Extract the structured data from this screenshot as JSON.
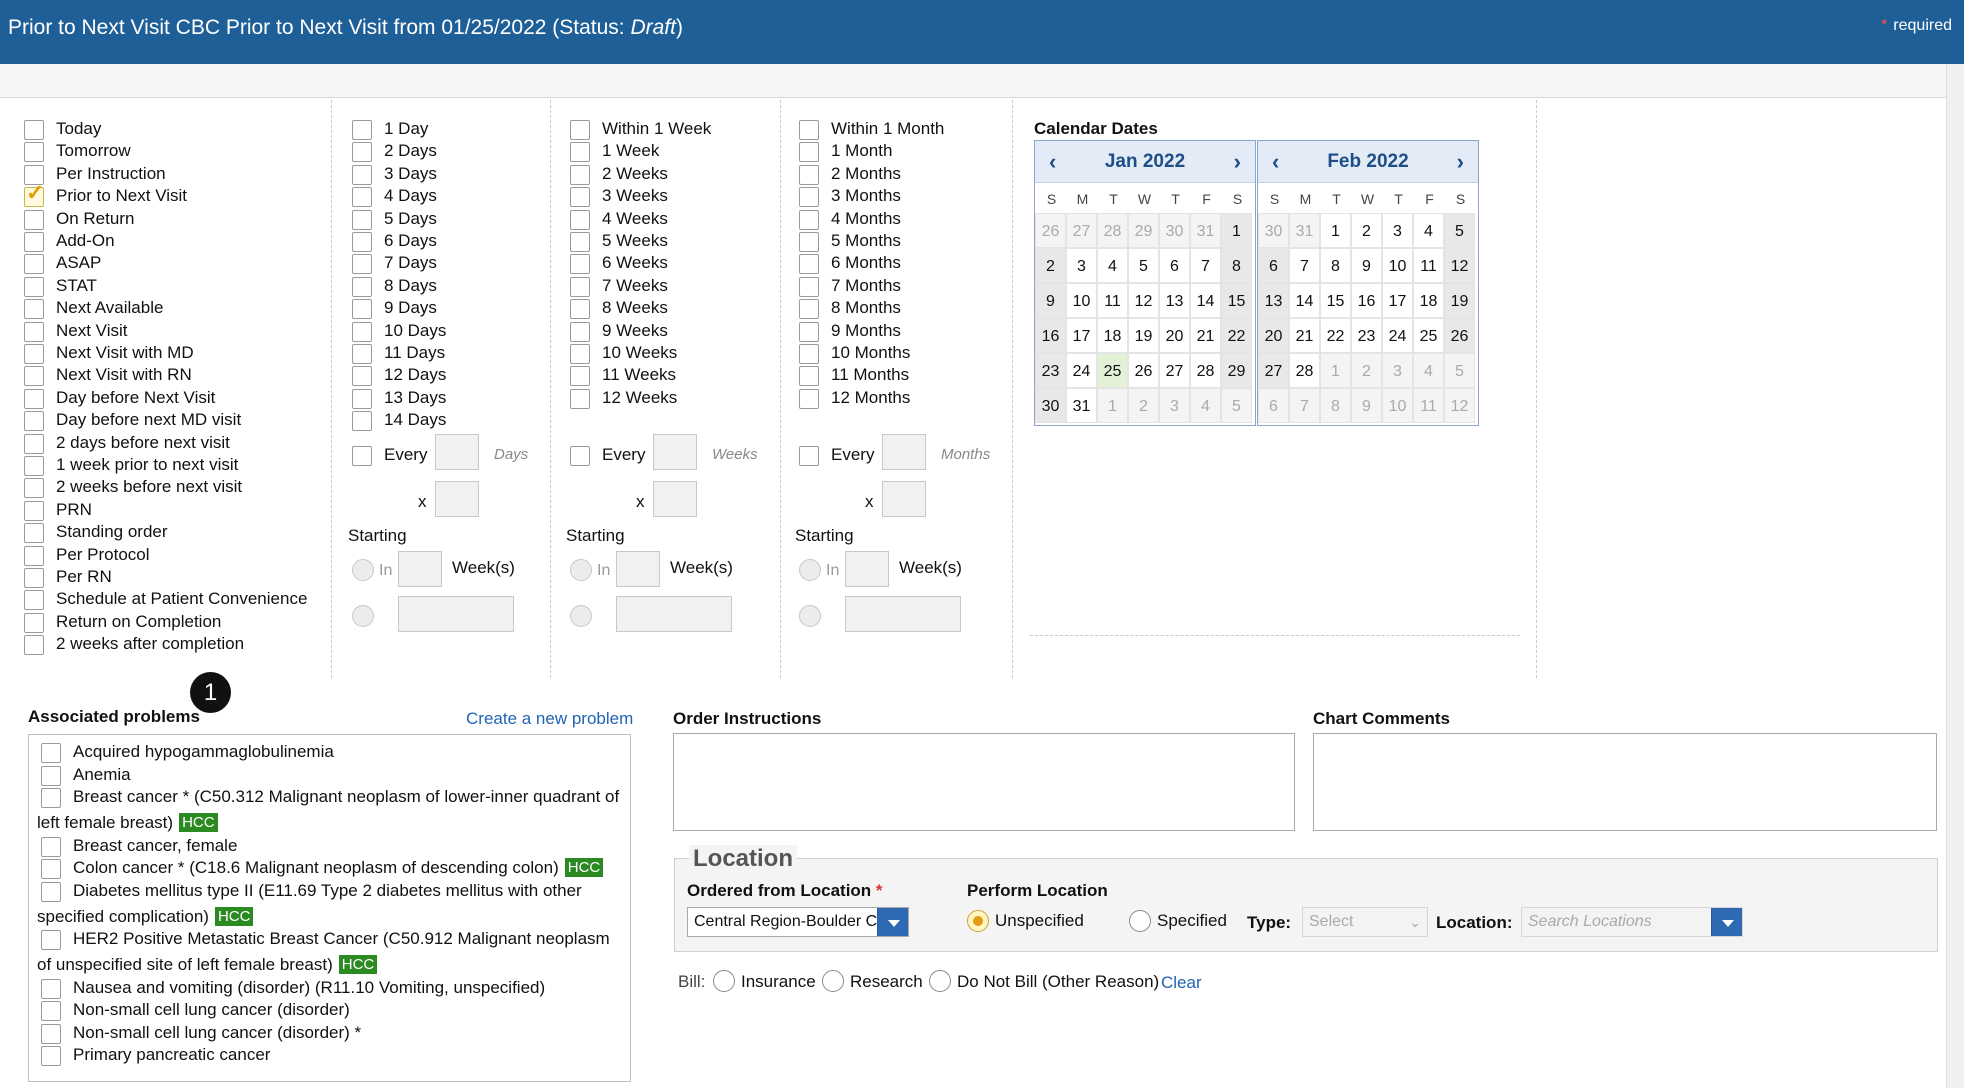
{
  "header": {
    "title_main": "Prior to Next Visit CBC Prior to Next Visit from 01/25/2022 (Status: ",
    "title_status": "Draft",
    "title_close": ")",
    "required_star": "*",
    "required_label": "required"
  },
  "col1": {
    "items": [
      {
        "label": "Today",
        "checked": false
      },
      {
        "label": "Tomorrow",
        "checked": false
      },
      {
        "label": "Per Instruction",
        "checked": false
      },
      {
        "label": "Prior to Next Visit",
        "checked": true
      },
      {
        "label": "On Return",
        "checked": false
      },
      {
        "label": "Add-On",
        "checked": false
      },
      {
        "label": "ASAP",
        "checked": false
      },
      {
        "label": "STAT",
        "checked": false
      },
      {
        "label": "Next Available",
        "checked": false
      },
      {
        "label": "Next Visit",
        "checked": false
      },
      {
        "label": "Next Visit with MD",
        "checked": false
      },
      {
        "label": "Next Visit with RN",
        "checked": false
      },
      {
        "label": "Day before Next Visit",
        "checked": false
      },
      {
        "label": "Day before next MD visit",
        "checked": false
      },
      {
        "label": "2 days before next visit",
        "checked": false
      },
      {
        "label": "1 week prior to next visit",
        "checked": false
      },
      {
        "label": "2 weeks before next visit",
        "checked": false
      },
      {
        "label": "PRN",
        "checked": false
      },
      {
        "label": "Standing order",
        "checked": false
      },
      {
        "label": "Per Protocol",
        "checked": false
      },
      {
        "label": "Per RN",
        "checked": false
      },
      {
        "label": "Schedule at Patient Convenience",
        "checked": false
      },
      {
        "label": "Return on Completion",
        "checked": false
      },
      {
        "label": "2 weeks after completion",
        "checked": false
      }
    ]
  },
  "days_col": {
    "items": [
      "1 Day",
      "2 Days",
      "3 Days",
      "4 Days",
      "5 Days",
      "6 Days",
      "7 Days",
      "8 Days",
      "9 Days",
      "10 Days",
      "11 Days",
      "12 Days",
      "13 Days",
      "14 Days"
    ],
    "every_label": "Every",
    "unit_label": "Days",
    "x_label": "x",
    "starting_label": "Starting",
    "in_label": "In",
    "weeks_label": "Week(s)"
  },
  "weeks_col": {
    "items": [
      "Within 1 Week",
      "1 Week",
      "2 Weeks",
      "3 Weeks",
      "4 Weeks",
      "5 Weeks",
      "6 Weeks",
      "7 Weeks",
      "8 Weeks",
      "9 Weeks",
      "10 Weeks",
      "11 Weeks",
      "12 Weeks"
    ],
    "every_label": "Every",
    "unit_label": "Weeks",
    "x_label": "x",
    "starting_label": "Starting",
    "in_label": "In",
    "weeks_label": "Week(s)"
  },
  "months_col": {
    "items": [
      "Within 1 Month",
      "1 Month",
      "2 Months",
      "3 Months",
      "4 Months",
      "5 Months",
      "6 Months",
      "7 Months",
      "8 Months",
      "9 Months",
      "10 Months",
      "11 Months",
      "12 Months"
    ],
    "every_label": "Every",
    "unit_label": "Months",
    "x_label": "x",
    "starting_label": "Starting",
    "in_label": "In",
    "weeks_label": "Week(s)"
  },
  "calendar": {
    "title": "Calendar Dates",
    "weekdays": [
      "S",
      "M",
      "T",
      "W",
      "T",
      "F",
      "S"
    ],
    "months": [
      {
        "name": "Jan 2022",
        "weeks": [
          [
            "26",
            "27",
            "28",
            "29",
            "30",
            "31",
            "1"
          ],
          [
            "2",
            "3",
            "4",
            "5",
            "6",
            "7",
            "8"
          ],
          [
            "9",
            "10",
            "11",
            "12",
            "13",
            "14",
            "15"
          ],
          [
            "16",
            "17",
            "18",
            "19",
            "20",
            "21",
            "22"
          ],
          [
            "23",
            "24",
            "25",
            "26",
            "27",
            "28",
            "29"
          ],
          [
            "30",
            "31",
            "1",
            "2",
            "3",
            "4",
            "5"
          ]
        ],
        "other_month": [
          [
            0,
            0
          ],
          [
            0,
            1
          ],
          [
            0,
            2
          ],
          [
            0,
            3
          ],
          [
            0,
            4
          ],
          [
            0,
            5
          ],
          [
            5,
            2
          ],
          [
            5,
            3
          ],
          [
            5,
            4
          ],
          [
            5,
            5
          ],
          [
            5,
            6
          ]
        ],
        "today": [
          4,
          2
        ]
      },
      {
        "name": "Feb 2022",
        "weeks": [
          [
            "30",
            "31",
            "1",
            "2",
            "3",
            "4",
            "5"
          ],
          [
            "6",
            "7",
            "8",
            "9",
            "10",
            "11",
            "12"
          ],
          [
            "13",
            "14",
            "15",
            "16",
            "17",
            "18",
            "19"
          ],
          [
            "20",
            "21",
            "22",
            "23",
            "24",
            "25",
            "26"
          ],
          [
            "27",
            "28",
            "1",
            "2",
            "3",
            "4",
            "5"
          ],
          [
            "6",
            "7",
            "8",
            "9",
            "10",
            "11",
            "12"
          ]
        ],
        "other_month": [
          [
            0,
            0
          ],
          [
            0,
            1
          ],
          [
            4,
            2
          ],
          [
            4,
            3
          ],
          [
            4,
            4
          ],
          [
            4,
            5
          ],
          [
            4,
            6
          ],
          [
            5,
            0
          ],
          [
            5,
            1
          ],
          [
            5,
            2
          ],
          [
            5,
            3
          ],
          [
            5,
            4
          ],
          [
            5,
            5
          ],
          [
            5,
            6
          ]
        ],
        "today": null
      }
    ],
    "prev_glyph": "‹",
    "next_glyph": "›"
  },
  "problems": {
    "title": "Associated problems",
    "create_link": "Create a new problem",
    "badge_number": "1",
    "hcc_label": "HCC",
    "items": [
      {
        "line1": "Acquired hypogammaglobulinemia",
        "line2": "",
        "hcc": false
      },
      {
        "line1": "Anemia",
        "line2": "",
        "hcc": false
      },
      {
        "line1": "Breast cancer * (C50.312 Malignant neoplasm of lower-inner quadrant of",
        "line2": "left female breast)",
        "hcc": true
      },
      {
        "line1": "Breast cancer, female",
        "line2": "",
        "hcc": false
      },
      {
        "line1": "Colon cancer * (C18.6 Malignant neoplasm of descending colon)",
        "line2": "",
        "hcc": true
      },
      {
        "line1": "Diabetes mellitus type II (E11.69 Type 2 diabetes mellitus with other",
        "line2": "specified complication)",
        "hcc": true
      },
      {
        "line1": "HER2 Positive Metastatic Breast Cancer (C50.912 Malignant neoplasm",
        "line2": "of unspecified site of left female breast)",
        "hcc": true
      },
      {
        "line1": "Nausea and vomiting (disorder) (R11.10 Vomiting, unspecified)",
        "line2": "",
        "hcc": false
      },
      {
        "line1": "Non-small cell lung cancer (disorder)",
        "line2": "",
        "hcc": false
      },
      {
        "line1": "Non-small cell lung cancer (disorder) *",
        "line2": "",
        "hcc": false
      },
      {
        "line1": "Primary pancreatic cancer",
        "line2": "",
        "hcc": false
      }
    ]
  },
  "order_instructions": {
    "title": "Order Instructions",
    "value": ""
  },
  "chart_comments": {
    "title": "Chart Comments",
    "value": ""
  },
  "location": {
    "legend": "Location",
    "ordered_from_label": "Ordered from Location",
    "required_star": "*",
    "ordered_from_value": "Central Region-Boulder Cl",
    "perform_label": "Perform Location",
    "unspecified_label": "Unspecified",
    "specified_label": "Specified",
    "perform_selected": "Unspecified",
    "type_label": "Type:",
    "type_placeholder": "Select",
    "location_label": "Location:",
    "location_placeholder": "Search Locations"
  },
  "bill": {
    "label": "Bill:",
    "options": [
      "Insurance",
      "Research",
      "Do Not Bill (Other Reason)"
    ],
    "clear_label": "Clear"
  },
  "colors": {
    "header_bg": "#1f5f98",
    "hcc_green": "#2c8a22",
    "link_blue": "#1f63b5",
    "accent_orange": "#e49a16"
  }
}
